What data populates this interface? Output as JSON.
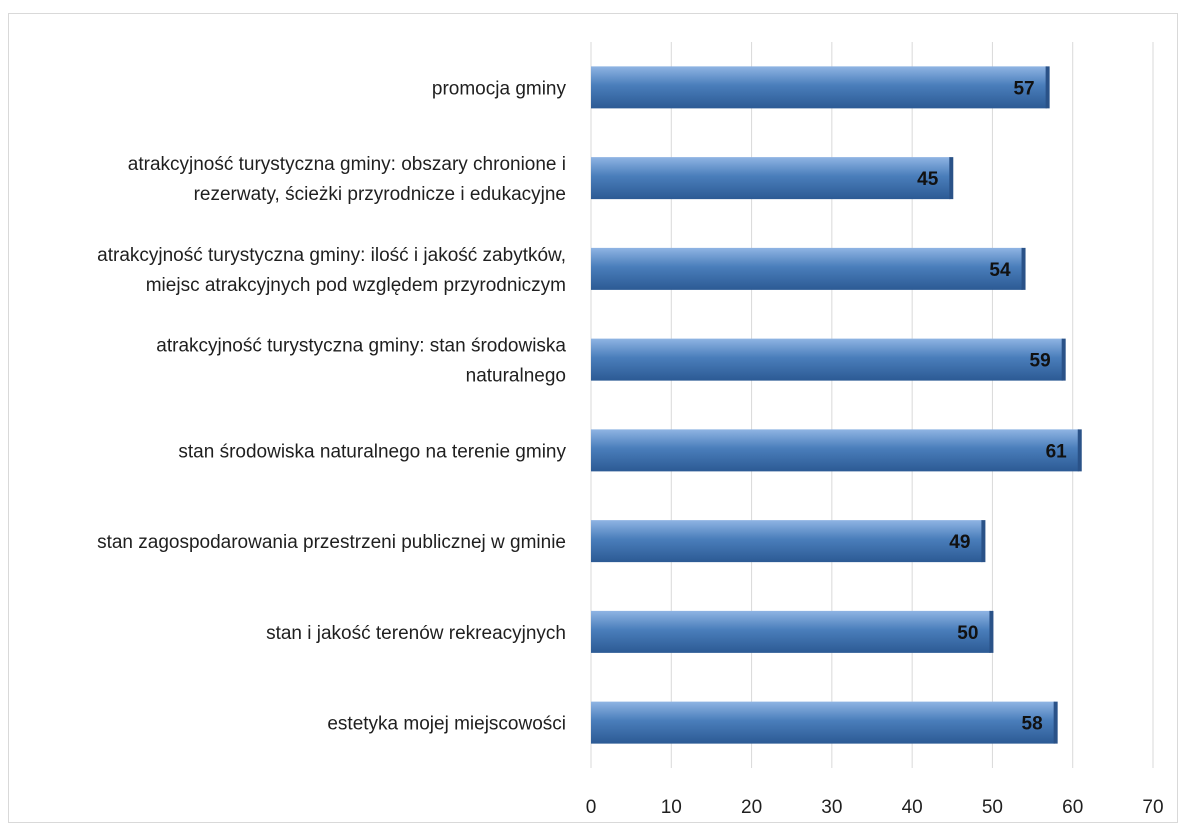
{
  "chart_data": {
    "type": "bar",
    "orientation": "horizontal",
    "categories": [
      [
        "promocja gminy"
      ],
      [
        "atrakcyjność turystyczna gminy: obszary chronione i",
        "rezerwaty, ścieżki przyrodnicze i edukacyjne"
      ],
      [
        "atrakcyjność turystyczna gminy: ilość i jakość zabytków,",
        "miejsc atrakcyjnych pod względem przyrodniczym"
      ],
      [
        "atrakcyjność turystyczna gminy: stan środowiska",
        "naturalnego"
      ],
      [
        "stan środowiska naturalnego na terenie gminy"
      ],
      [
        "stan zagospodarowania przestrzeni publicznej w gminie"
      ],
      [
        "stan i jakość terenów rekreacyjnych"
      ],
      [
        "estetyka mojej miejscowości"
      ]
    ],
    "values": [
      57,
      45,
      54,
      59,
      61,
      49,
      50,
      58
    ],
    "xlim": [
      0,
      70
    ],
    "ticks": [
      "0",
      "10",
      "20",
      "30",
      "40",
      "50",
      "60",
      "70"
    ],
    "grid": true,
    "legend": "none",
    "bar_color": "#4a7ebb",
    "grid_color": "#d9d9d9"
  }
}
